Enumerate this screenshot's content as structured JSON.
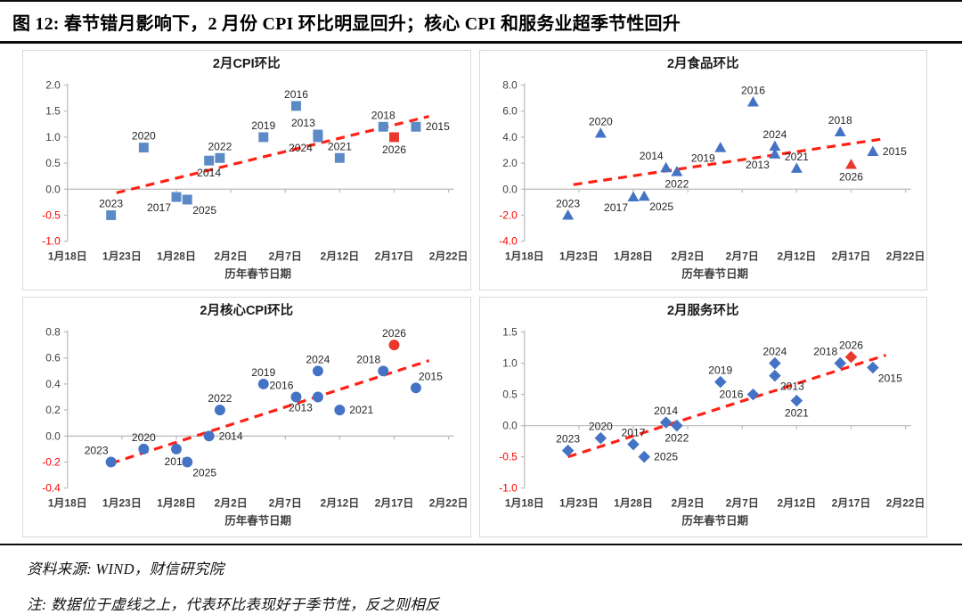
{
  "page": {
    "title": "图 12:  春节错月影响下，2 月份 CPI 环比明显回升；核心 CPI 和服务业超季节性回升",
    "source": "资料来源:  WIND，财信研究院",
    "note": "注:  数据位于虚线之上，代表环比表现好于季节性，反之则相反"
  },
  "colors": {
    "axis": "#bfbfbf",
    "tick_text": "#3f3f3f",
    "negative_tick": "#ff0000",
    "label_text": "#262626",
    "trend_line": "#ff2115",
    "highlight": "#e8392c",
    "panel_border": "#d9d9d9",
    "rule": "#0d0d0d"
  },
  "axis": {
    "x_tick_days": [
      0,
      5,
      10,
      15,
      20,
      25,
      30,
      35
    ],
    "x_tick_labels": [
      "1月18日",
      "1月23日",
      "1月28日",
      "2月2日",
      "2月7日",
      "2月12日",
      "2月17日",
      "2月22日"
    ]
  },
  "chart_data": [
    {
      "id": "cpi",
      "type": "scatter",
      "title": "2月CPI环比",
      "xlabel": "历年春节日期",
      "marker": "square",
      "marker_color": "#5b8ac6",
      "ylim": [
        -1.0,
        2.0
      ],
      "xlim_days": [
        0,
        35
      ],
      "grid": false,
      "y_ticks": [
        {
          "t": "2.0",
          "v": 2.0
        },
        {
          "t": "1.5",
          "v": 1.5
        },
        {
          "t": "1.0",
          "v": 1.0
        },
        {
          "t": "0.5",
          "v": 0.5
        },
        {
          "t": "0.0",
          "v": 0.0
        },
        {
          "t": "-0.5",
          "v": -0.5
        },
        {
          "t": "-1.0",
          "v": -1.0
        }
      ],
      "trend": {
        "x1": 4.5,
        "y1": -0.07,
        "x2": 33.2,
        "y2": 1.4
      },
      "points": [
        {
          "year": "2013",
          "date": "2月10日",
          "day": 23,
          "value": 1.05,
          "lp": "al"
        },
        {
          "year": "2014",
          "date": "1月31日",
          "day": 13,
          "value": 0.55,
          "lp": "b"
        },
        {
          "year": "2015",
          "date": "2月19日",
          "day": 32,
          "value": 1.2,
          "lp": "r"
        },
        {
          "year": "2016",
          "date": "2月8日",
          "day": 21,
          "value": 1.6,
          "lp": "a"
        },
        {
          "year": "2017",
          "date": "1月28日",
          "day": 10,
          "value": -0.15,
          "lp": "bl"
        },
        {
          "year": "2018",
          "date": "2月16日",
          "day": 29,
          "value": 1.2,
          "lp": "a"
        },
        {
          "year": "2019",
          "date": "2月5日",
          "day": 18,
          "value": 1.0,
          "lp": "a"
        },
        {
          "year": "2020",
          "date": "1月25日",
          "day": 7,
          "value": 0.8,
          "lp": "a"
        },
        {
          "year": "2021",
          "date": "2月12日",
          "day": 25,
          "value": 0.6,
          "lp": "a"
        },
        {
          "year": "2022",
          "date": "2月1日",
          "day": 14,
          "value": 0.6,
          "lp": "a"
        },
        {
          "year": "2023",
          "date": "1月22日",
          "day": 4,
          "value": -0.5,
          "lp": "a"
        },
        {
          "year": "2024",
          "date": "2月10日",
          "day": 23,
          "value": 1.0,
          "lp": "bl"
        },
        {
          "year": "2025",
          "date": "1月29日",
          "day": 11,
          "value": -0.2,
          "lp": "br"
        },
        {
          "year": "2026",
          "date": "2月17日",
          "day": 30,
          "value": 1.0,
          "lp": "b",
          "highlight": true
        }
      ]
    },
    {
      "id": "food",
      "type": "scatter",
      "title": "2月食品环比",
      "xlabel": "历年春节日期",
      "marker": "triangle",
      "marker_color": "#4472c4",
      "ylim": [
        -4.0,
        8.0
      ],
      "xlim_days": [
        0,
        35
      ],
      "grid": false,
      "y_ticks": [
        {
          "t": "8.0",
          "v": 8.0
        },
        {
          "t": "6.0",
          "v": 6.0
        },
        {
          "t": "4.0",
          "v": 4.0
        },
        {
          "t": "2.0",
          "v": 2.0
        },
        {
          "t": "0.0",
          "v": 0.0
        },
        {
          "t": "-2.0",
          "v": -2.0
        },
        {
          "t": "-4.0",
          "v": -4.0
        }
      ],
      "trend": {
        "x1": 4.5,
        "y1": 0.35,
        "x2": 33.2,
        "y2": 3.9
      },
      "points": [
        {
          "year": "2013",
          "date": "2月10日",
          "day": 23,
          "value": 2.7,
          "lp": "bl"
        },
        {
          "year": "2014",
          "date": "1月31日",
          "day": 13,
          "value": 1.65,
          "lp": "al"
        },
        {
          "year": "2015",
          "date": "2月19日",
          "day": 32,
          "value": 2.9,
          "lp": "r"
        },
        {
          "year": "2016",
          "date": "2月8日",
          "day": 21,
          "value": 6.7,
          "lp": "a"
        },
        {
          "year": "2017",
          "date": "1月28日",
          "day": 10,
          "value": -0.6,
          "lp": "bl"
        },
        {
          "year": "2018",
          "date": "2月16日",
          "day": 29,
          "value": 4.4,
          "lp": "a"
        },
        {
          "year": "2019",
          "date": "2月5日",
          "day": 18,
          "value": 3.2,
          "lp": "bl"
        },
        {
          "year": "2020",
          "date": "1月25日",
          "day": 7,
          "value": 4.3,
          "lp": "a"
        },
        {
          "year": "2021",
          "date": "2月12日",
          "day": 25,
          "value": 1.6,
          "lp": "a"
        },
        {
          "year": "2022",
          "date": "2月1日",
          "day": 14,
          "value": 1.35,
          "lp": "b"
        },
        {
          "year": "2023",
          "date": "1月22日",
          "day": 4,
          "value": -2.0,
          "lp": "a"
        },
        {
          "year": "2024",
          "date": "2月10日",
          "day": 23,
          "value": 3.3,
          "lp": "a"
        },
        {
          "year": "2025",
          "date": "1月29日",
          "day": 11,
          "value": -0.55,
          "lp": "br"
        },
        {
          "year": "2026",
          "date": "2月17日",
          "day": 30,
          "value": 1.9,
          "lp": "b",
          "highlight": true
        }
      ]
    },
    {
      "id": "core_cpi",
      "type": "scatter",
      "title": "2月核心CPI环比",
      "xlabel": "历年春节日期",
      "marker": "circle",
      "marker_color": "#4472c4",
      "ylim": [
        -0.4,
        0.8
      ],
      "xlim_days": [
        0,
        35
      ],
      "grid": false,
      "y_ticks": [
        {
          "t": "0.8",
          "v": 0.8
        },
        {
          "t": "0.6",
          "v": 0.6
        },
        {
          "t": "0.4",
          "v": 0.4
        },
        {
          "t": "0.2",
          "v": 0.2
        },
        {
          "t": "0.0",
          "v": 0.0
        },
        {
          "t": "-0.2",
          "v": -0.2
        },
        {
          "t": "-0.4",
          "v": -0.4
        }
      ],
      "trend": {
        "x1": 4.0,
        "y1": -0.21,
        "x2": 33.2,
        "y2": 0.58
      },
      "points": [
        {
          "year": "2013",
          "date": "2月10日",
          "day": 23,
          "value": 0.3,
          "lp": "bl"
        },
        {
          "year": "2014",
          "date": "1月31日",
          "day": 13,
          "value": 0.0,
          "lp": "r"
        },
        {
          "year": "2015",
          "date": "2月19日",
          "day": 32,
          "value": 0.37,
          "lp": "ar"
        },
        {
          "year": "2016",
          "date": "2月8日",
          "day": 21,
          "value": 0.3,
          "lp": "al"
        },
        {
          "year": "2017",
          "date": "1月28日",
          "day": 10,
          "value": -0.1,
          "lp": "b"
        },
        {
          "year": "2018",
          "date": "2月16日",
          "day": 29,
          "value": 0.5,
          "lp": "al"
        },
        {
          "year": "2019",
          "date": "2月5日",
          "day": 18,
          "value": 0.4,
          "lp": "a"
        },
        {
          "year": "2020",
          "date": "1月25日",
          "day": 7,
          "value": -0.1,
          "lp": "a"
        },
        {
          "year": "2021",
          "date": "2月12日",
          "day": 25,
          "value": 0.2,
          "lp": "r"
        },
        {
          "year": "2022",
          "date": "2月1日",
          "day": 14,
          "value": 0.2,
          "lp": "a"
        },
        {
          "year": "2023",
          "date": "1月22日",
          "day": 4,
          "value": -0.2,
          "lp": "al"
        },
        {
          "year": "2024",
          "date": "2月10日",
          "day": 23,
          "value": 0.5,
          "lp": "a"
        },
        {
          "year": "2025",
          "date": "1月29日",
          "day": 11,
          "value": -0.2,
          "lp": "br"
        },
        {
          "year": "2026",
          "date": "2月17日",
          "day": 30,
          "value": 0.7,
          "lp": "a",
          "highlight": true
        }
      ]
    },
    {
      "id": "services",
      "type": "scatter",
      "title": "2月服务环比",
      "xlabel": "历年春节日期",
      "marker": "diamond",
      "marker_color": "#4472c4",
      "ylim": [
        -1.0,
        1.5
      ],
      "xlim_days": [
        0,
        35
      ],
      "grid": false,
      "y_ticks": [
        {
          "t": "1.5",
          "v": 1.5
        },
        {
          "t": "1.0",
          "v": 1.0
        },
        {
          "t": "0.5",
          "v": 0.5
        },
        {
          "t": "0.0",
          "v": 0.0
        },
        {
          "t": "-0.5",
          "v": -0.5
        },
        {
          "t": "-1.0",
          "v": -1.0
        }
      ],
      "trend": {
        "x1": 4.0,
        "y1": -0.5,
        "x2": 33.2,
        "y2": 1.13
      },
      "points": [
        {
          "year": "2013",
          "date": "2月10日",
          "day": 23,
          "value": 0.8,
          "lp": "br"
        },
        {
          "year": "2014",
          "date": "1月31日",
          "day": 13,
          "value": 0.05,
          "lp": "a"
        },
        {
          "year": "2015",
          "date": "2月19日",
          "day": 32,
          "value": 0.93,
          "lp": "br"
        },
        {
          "year": "2016",
          "date": "2月8日",
          "day": 21,
          "value": 0.5,
          "lp": "l"
        },
        {
          "year": "2017",
          "date": "1月28日",
          "day": 10,
          "value": -0.3,
          "lp": "a"
        },
        {
          "year": "2018",
          "date": "2月16日",
          "day": 29,
          "value": 1.0,
          "lp": "al"
        },
        {
          "year": "2019",
          "date": "2月5日",
          "day": 18,
          "value": 0.7,
          "lp": "a"
        },
        {
          "year": "2020",
          "date": "1月25日",
          "day": 7,
          "value": -0.2,
          "lp": "a"
        },
        {
          "year": "2021",
          "date": "2月12日",
          "day": 25,
          "value": 0.4,
          "lp": "b"
        },
        {
          "year": "2022",
          "date": "2月1日",
          "day": 14,
          "value": 0.0,
          "lp": "b"
        },
        {
          "year": "2023",
          "date": "1月22日",
          "day": 4,
          "value": -0.4,
          "lp": "a"
        },
        {
          "year": "2024",
          "date": "2月10日",
          "day": 23,
          "value": 1.0,
          "lp": "a"
        },
        {
          "year": "2025",
          "date": "1月29日",
          "day": 11,
          "value": -0.5,
          "lp": "r"
        },
        {
          "year": "2026",
          "date": "2月17日",
          "day": 30,
          "value": 1.1,
          "lp": "a",
          "highlight": true
        }
      ]
    }
  ]
}
